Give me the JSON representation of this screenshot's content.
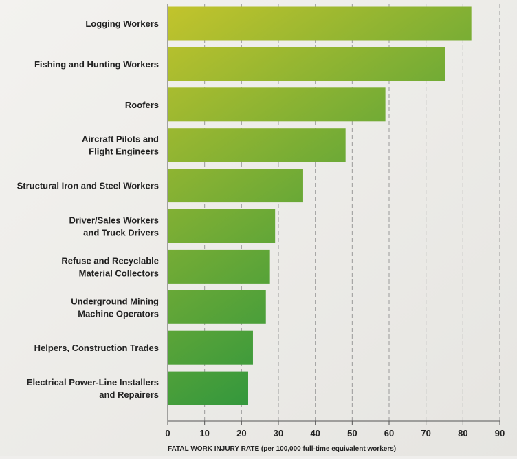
{
  "chart_data": {
    "type": "hbar",
    "x_label": "FATAL WORK INJURY RATE (per 100,000 full-time equivalent workers)",
    "categories": [
      "Logging Workers",
      "Fishing and Hunting Workers",
      "Roofers",
      "Aircraft Pilots and\nFlight Engineers",
      "Structural Iron and Steel Workers",
      "Driver/Sales Workers\nand Truck Drivers",
      "Refuse and Recyclable\nMaterial Collectors",
      "Underground Mining\nMachine Operators",
      "Helpers, Construction Trades",
      "Electrical Power-Line Installers\nand Repairers"
    ],
    "values": [
      82.3,
      75.2,
      59.0,
      48.2,
      36.7,
      29.1,
      27.7,
      26.6,
      23.1,
      21.8
    ],
    "gradient_colors": [
      "#c3c42c",
      "#078a42"
    ],
    "xlim": [
      0,
      90
    ],
    "xticks": [
      0,
      10,
      20,
      30,
      40,
      50,
      60,
      70,
      80,
      90
    ],
    "grid": true
  }
}
